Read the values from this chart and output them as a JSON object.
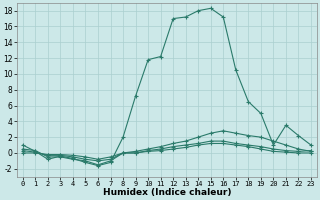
{
  "xlabel": "Humidex (Indice chaleur)",
  "bg_color": "#cce8e8",
  "grid_color": "#aacfcf",
  "line_color": "#2a7a6a",
  "xlim": [
    -0.5,
    23.5
  ],
  "ylim": [
    -3,
    19
  ],
  "xticks": [
    0,
    1,
    2,
    3,
    4,
    5,
    6,
    7,
    8,
    9,
    10,
    11,
    12,
    13,
    14,
    15,
    16,
    17,
    18,
    19,
    20,
    21,
    22,
    23
  ],
  "yticks": [
    -2,
    0,
    2,
    4,
    6,
    8,
    10,
    12,
    14,
    16,
    18
  ],
  "series": [
    {
      "x": [
        0,
        1,
        2,
        3,
        4,
        5,
        6,
        7,
        8,
        9,
        10,
        11,
        12,
        13,
        14,
        15,
        16,
        17,
        18,
        19,
        20,
        21,
        22,
        23
      ],
      "y": [
        1.0,
        0.2,
        -0.8,
        -0.4,
        -0.7,
        -1.2,
        -1.6,
        -1.2,
        2.0,
        7.2,
        11.8,
        12.2,
        17.0,
        17.2,
        18.0,
        18.3,
        17.2,
        10.5,
        6.5,
        5.0,
        1.0,
        3.5,
        2.2,
        1.0
      ]
    },
    {
      "x": [
        0,
        1,
        2,
        3,
        4,
        5,
        6,
        7,
        8,
        9,
        10,
        11,
        12,
        13,
        14,
        15,
        16,
        17,
        18,
        19,
        20,
        21,
        22,
        23
      ],
      "y": [
        0.5,
        0.3,
        -0.5,
        -0.5,
        -0.8,
        -1.0,
        -1.5,
        -1.0,
        0.0,
        0.0,
        0.3,
        0.5,
        0.8,
        1.0,
        1.2,
        1.5,
        1.5,
        1.2,
        1.0,
        0.8,
        0.5,
        0.3,
        0.2,
        0.3
      ]
    },
    {
      "x": [
        0,
        1,
        2,
        3,
        4,
        5,
        6,
        7,
        8,
        9,
        10,
        11,
        12,
        13,
        14,
        15,
        16,
        17,
        18,
        19,
        20,
        21,
        22,
        23
      ],
      "y": [
        0.3,
        0.1,
        -0.3,
        -0.3,
        -0.5,
        -0.8,
        -1.0,
        -0.8,
        0.0,
        0.2,
        0.5,
        0.8,
        1.2,
        1.5,
        2.0,
        2.5,
        2.8,
        2.5,
        2.2,
        2.0,
        1.5,
        1.0,
        0.5,
        0.2
      ]
    },
    {
      "x": [
        0,
        1,
        2,
        3,
        4,
        5,
        6,
        7,
        8,
        9,
        10,
        11,
        12,
        13,
        14,
        15,
        16,
        17,
        18,
        19,
        20,
        21,
        22,
        23
      ],
      "y": [
        0.0,
        0.0,
        -0.2,
        -0.2,
        -0.3,
        -0.5,
        -0.8,
        -0.5,
        0.0,
        0.0,
        0.2,
        0.3,
        0.5,
        0.7,
        1.0,
        1.2,
        1.2,
        1.0,
        0.8,
        0.5,
        0.2,
        0.1,
        0.0,
        0.0
      ]
    }
  ]
}
